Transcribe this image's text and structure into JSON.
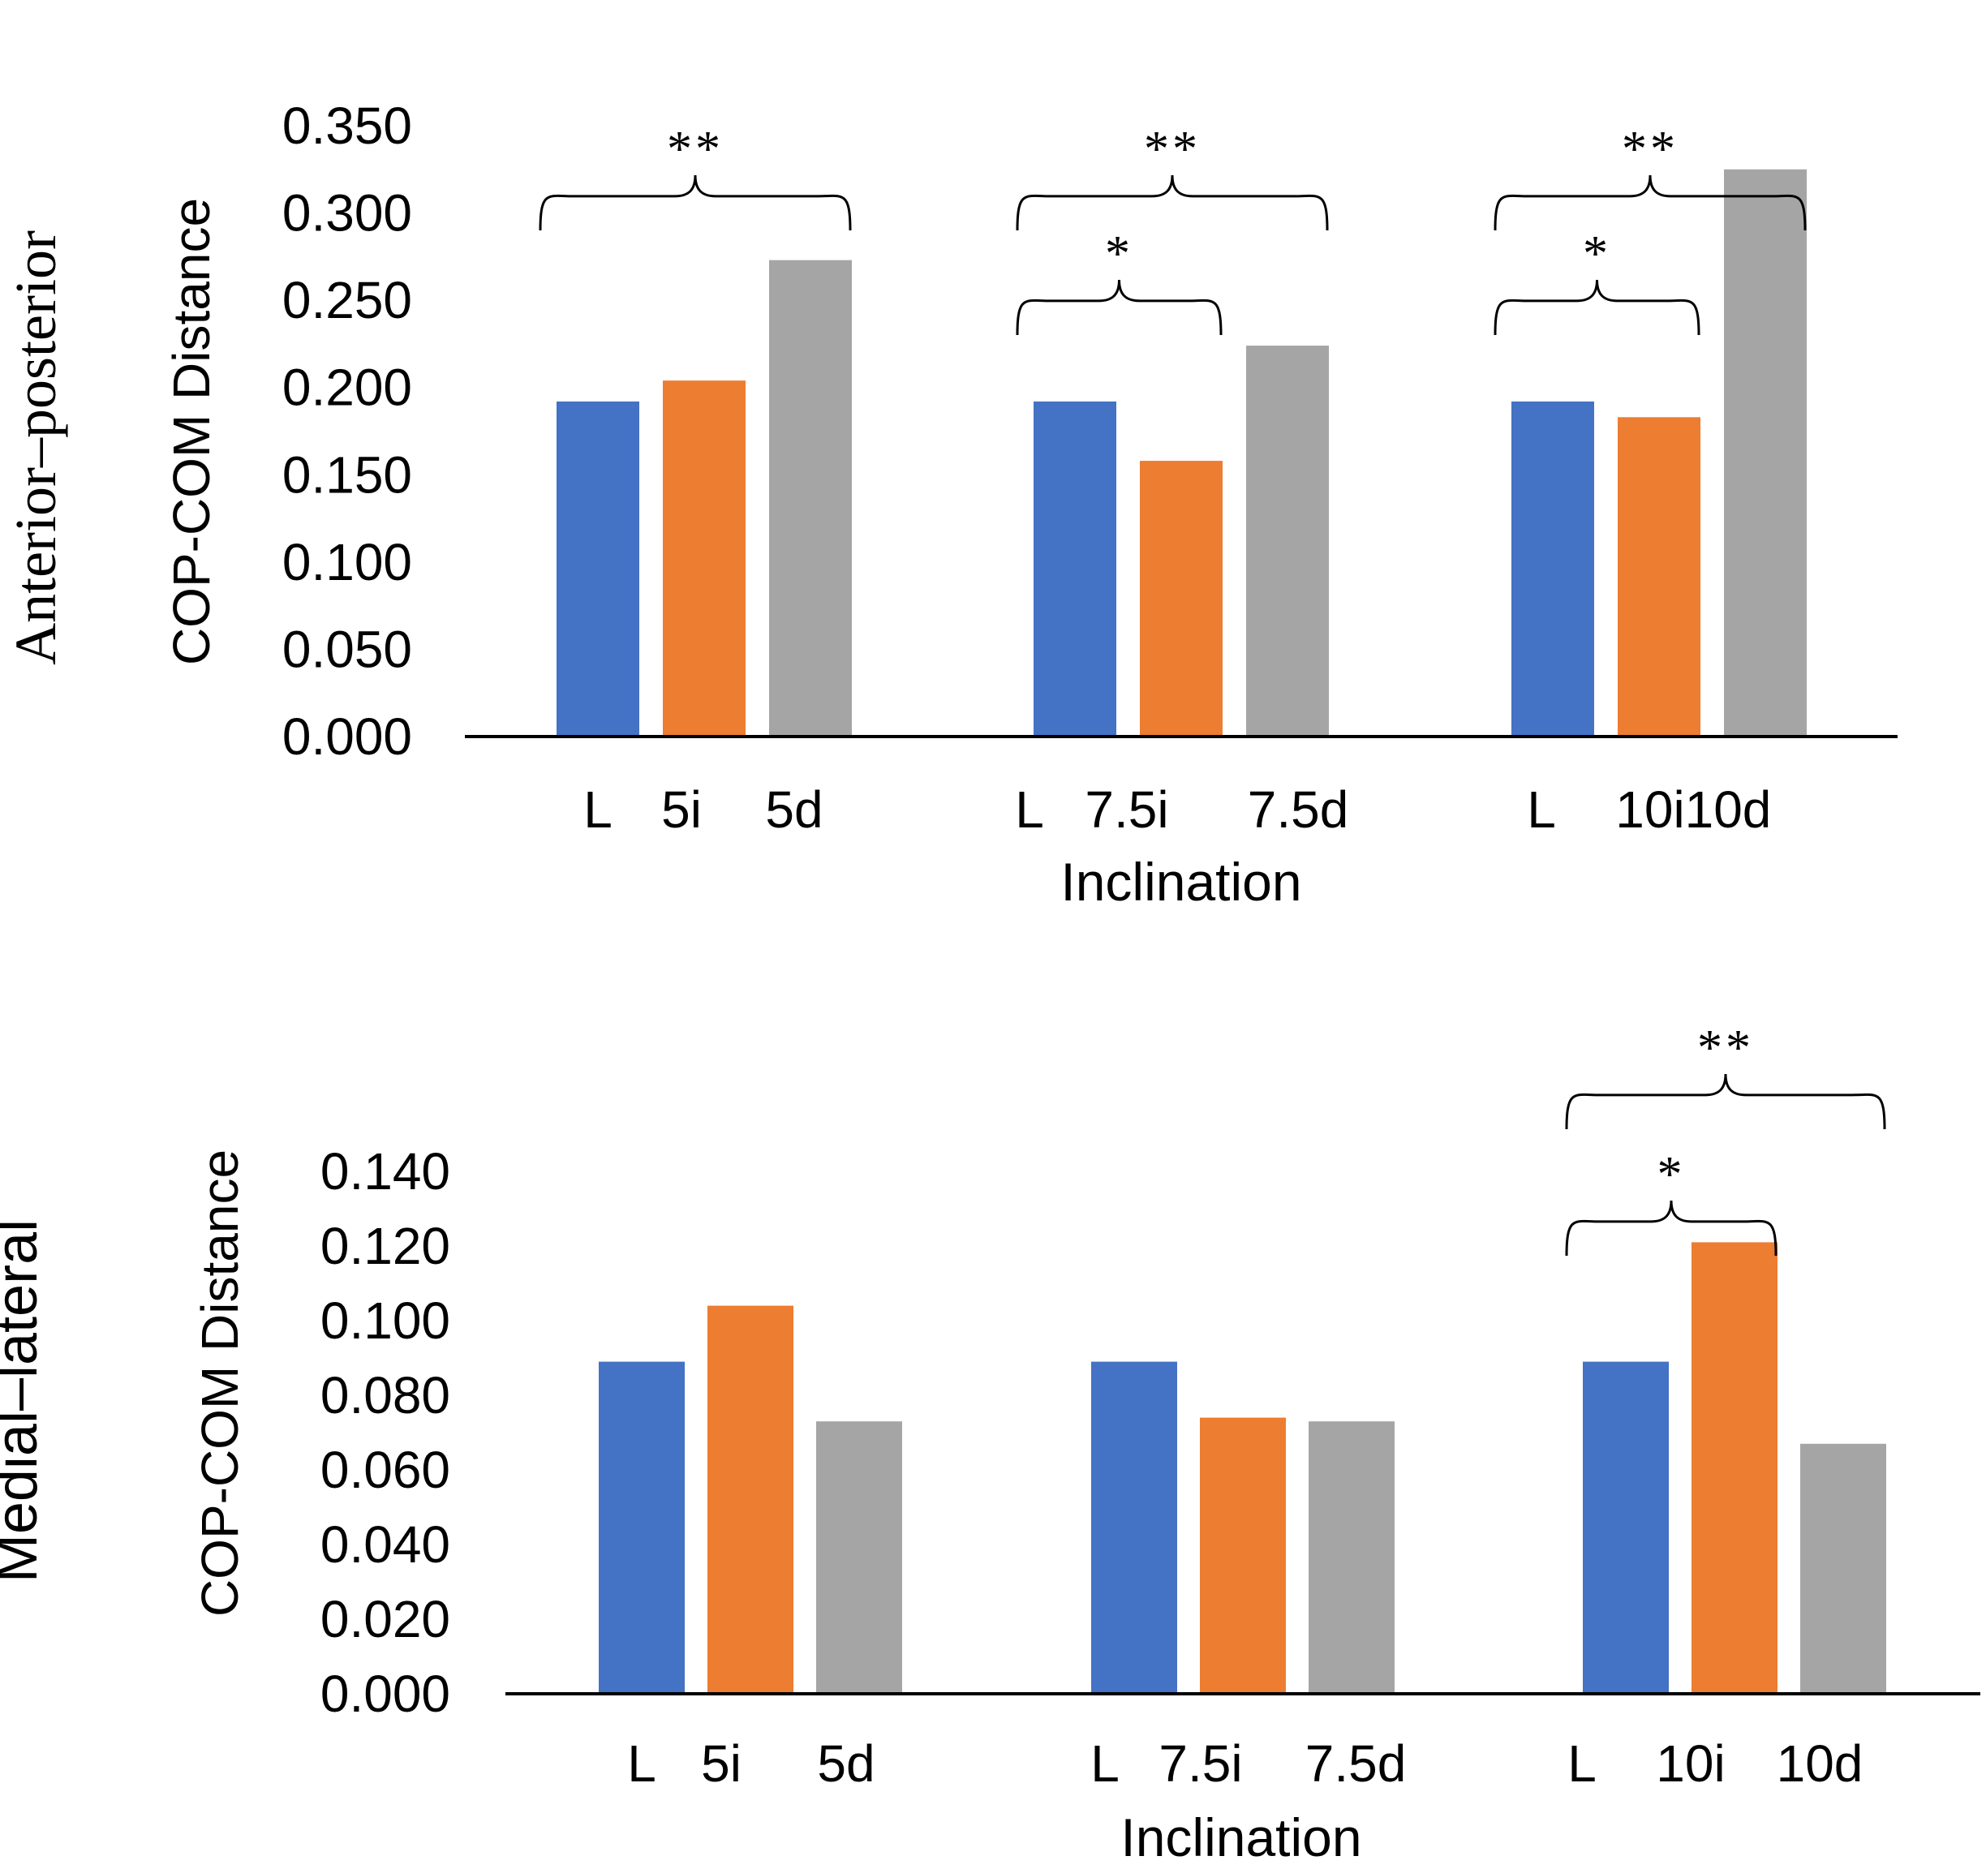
{
  "chart_data": [
    {
      "type": "bar",
      "panel_title": "Anterior–posterior",
      "xlabel": "Inclination",
      "ylabel": "COP-COM Distance",
      "ylim": [
        0,
        0.35
      ],
      "yticks": [
        "0.000",
        "0.050",
        "0.100",
        "0.150",
        "0.200",
        "0.250",
        "0.300",
        "0.350"
      ],
      "grid": false,
      "groups": [
        {
          "name": "5",
          "categories": [
            "L",
            "5i",
            "5d"
          ],
          "values": [
            0.192,
            0.204,
            0.273
          ]
        },
        {
          "name": "7.5",
          "categories": [
            "L",
            "7.5i",
            "7.5d"
          ],
          "values": [
            0.192,
            0.158,
            0.224
          ]
        },
        {
          "name": "10",
          "categories": [
            "L",
            "10i",
            "10d"
          ],
          "values": [
            0.192,
            0.183,
            0.325
          ]
        }
      ],
      "bar_colors": [
        "#4472C4",
        "#ED7D31",
        "#A5A5A5"
      ],
      "significance": [
        {
          "group": 0,
          "from": 0,
          "to": 2,
          "label": "**"
        },
        {
          "group": 1,
          "from": 0,
          "to": 2,
          "label": "**"
        },
        {
          "group": 1,
          "from": 0,
          "to": 1,
          "label": "*"
        },
        {
          "group": 2,
          "from": 0,
          "to": 2,
          "label": "**"
        },
        {
          "group": 2,
          "from": 0,
          "to": 1,
          "label": "*"
        }
      ]
    },
    {
      "type": "bar",
      "panel_title": "Medial–lateral",
      "xlabel": "Inclination",
      "ylabel": "COP-COM Distance",
      "ylim": [
        0,
        0.14
      ],
      "yticks": [
        "0.000",
        "0.020",
        "0.040",
        "0.060",
        "0.080",
        "0.100",
        "0.120",
        "0.140"
      ],
      "grid": false,
      "groups": [
        {
          "name": "5",
          "categories": [
            "L",
            "5i",
            "5d"
          ],
          "values": [
            0.089,
            0.104,
            0.073
          ]
        },
        {
          "name": "7.5",
          "categories": [
            "L",
            "7.5i",
            "7.5d"
          ],
          "values": [
            0.089,
            0.074,
            0.073
          ]
        },
        {
          "name": "10",
          "categories": [
            "L",
            "10i",
            "10d"
          ],
          "values": [
            0.089,
            0.121,
            0.067
          ]
        }
      ],
      "bar_colors": [
        "#4472C4",
        "#ED7D31",
        "#A5A5A5"
      ],
      "significance": [
        {
          "group": 2,
          "from": 0,
          "to": 2,
          "label": "**"
        },
        {
          "group": 2,
          "from": 0,
          "to": 1,
          "label": "*"
        }
      ]
    }
  ]
}
